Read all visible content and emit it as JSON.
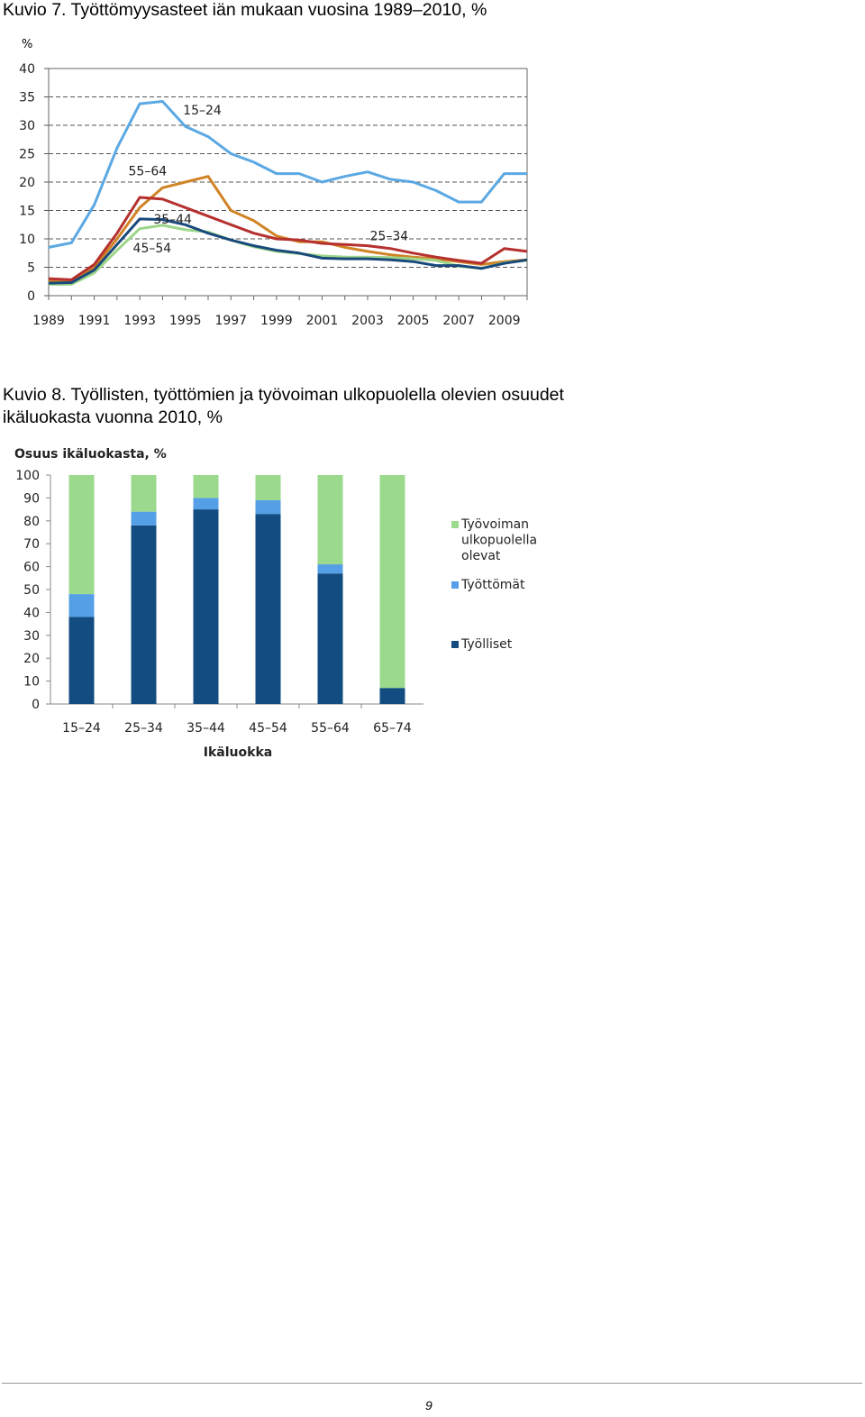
{
  "captions": {
    "figure7": "Kuvio 7. Työttömyysasteet iän mukaan vuosina 1989–2010, %",
    "figure8": "Kuvio 8. Työllisten, työttömien ja työvoiman ulkopuolella olevien osuudet ikäluokasta vuonna 2010, %"
  },
  "page_number": "9",
  "chart_data": [
    {
      "type": "line",
      "ylabel": "%",
      "ylim": [
        0,
        40
      ],
      "yticks": [
        0,
        5,
        10,
        15,
        20,
        25,
        30,
        35,
        40
      ],
      "grid": "dashed horizontal",
      "x": [
        1989,
        1990,
        1991,
        1992,
        1993,
        1994,
        1995,
        1996,
        1997,
        1998,
        1999,
        2000,
        2001,
        2002,
        2003,
        2004,
        2005,
        2006,
        2007,
        2008,
        2009,
        2010
      ],
      "xtick_labels": [
        "1989",
        "1991",
        "1993",
        "1995",
        "1997",
        "1999",
        "2001",
        "2003",
        "2005",
        "2007",
        "2009"
      ],
      "series": [
        {
          "name": "15–24",
          "color": "#5ba8e3",
          "label_year": 1994.9,
          "label_value": 31.9,
          "values": [
            8.5,
            9.3,
            16.0,
            26.0,
            33.8,
            34.2,
            29.8,
            28.0,
            25.0,
            23.5,
            21.5,
            21.5,
            20.0,
            21.0,
            21.8,
            20.5,
            20.0,
            18.5,
            16.5,
            16.5,
            21.5,
            21.5
          ]
        },
        {
          "name": "25–34",
          "color": "#b5302e",
          "label_year": 2003.1,
          "label_value": 9.8,
          "values": [
            3.0,
            2.8,
            5.5,
            11.0,
            17.3,
            17.0,
            15.5,
            14.0,
            12.5,
            11.0,
            10.0,
            9.8,
            9.2,
            9.0,
            8.8,
            8.3,
            7.5,
            6.8,
            6.2,
            5.7,
            8.3,
            7.8
          ]
        },
        {
          "name": "35–44",
          "color": "#1a4a7b",
          "label_year": 1993.6,
          "label_value": 12.7,
          "values": [
            2.2,
            2.3,
            4.5,
            9.0,
            13.5,
            13.4,
            12.5,
            11.0,
            9.8,
            8.8,
            8.0,
            7.5,
            6.6,
            6.5,
            6.5,
            6.3,
            6.0,
            5.3,
            5.3,
            4.8,
            5.7,
            6.3
          ]
        },
        {
          "name": "45–54",
          "color": "#9dd68a",
          "label_year": 1992.7,
          "label_value": 7.6,
          "values": [
            2.0,
            2.0,
            4.0,
            8.0,
            11.8,
            12.4,
            11.6,
            11.2,
            9.8,
            8.6,
            7.8,
            7.4,
            7.0,
            6.8,
            6.8,
            6.7,
            6.5,
            6.2,
            5.2,
            4.8,
            5.8,
            6.2
          ]
        },
        {
          "name": "55–64",
          "color": "#d08325",
          "label_year": 1992.5,
          "label_value": 21.2,
          "values": [
            2.6,
            2.4,
            5.0,
            10.0,
            15.5,
            19.0,
            20.0,
            21.0,
            15.0,
            13.2,
            10.5,
            9.5,
            9.5,
            8.5,
            7.8,
            7.2,
            6.8,
            6.5,
            6.0,
            5.5,
            6.0,
            6.3
          ]
        }
      ]
    },
    {
      "type": "bar",
      "stacked": true,
      "title": "Osuus ikäluokasta, %",
      "xlabel": "Ikäluokka",
      "ylim": [
        0,
        100
      ],
      "yticks": [
        0,
        10,
        20,
        30,
        40,
        50,
        60,
        70,
        80,
        90,
        100
      ],
      "categories": [
        "15–24",
        "25–34",
        "35–44",
        "45–54",
        "55–64",
        "65–74"
      ],
      "legend_position": "right",
      "series": [
        {
          "name": "Työlliset",
          "color": "#124c80",
          "values": [
            38,
            78,
            85,
            83,
            57,
            7
          ]
        },
        {
          "name": "Työttömät",
          "color": "#559fe6",
          "values": [
            10,
            6,
            5,
            6,
            4,
            0
          ]
        },
        {
          "name": "Työvoiman ulkopuolella olevat",
          "name_lines": [
            "Työvoiman",
            "ulkopuolella",
            "olevat"
          ],
          "color": "#9bd98c",
          "values": [
            52,
            16,
            10,
            11,
            39,
            93
          ]
        }
      ],
      "legend_order": [
        2,
        1,
        0
      ]
    }
  ]
}
